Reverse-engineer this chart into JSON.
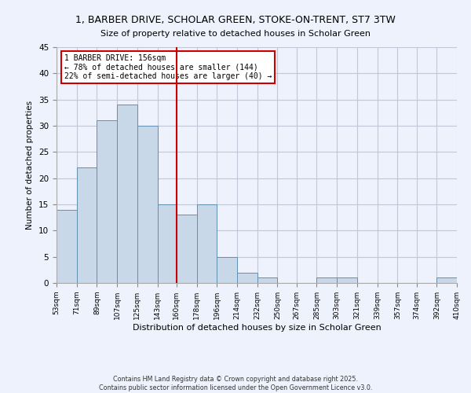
{
  "title": "1, BARBER DRIVE, SCHOLAR GREEN, STOKE-ON-TRENT, ST7 3TW",
  "subtitle": "Size of property relative to detached houses in Scholar Green",
  "xlabel": "Distribution of detached houses by size in Scholar Green",
  "ylabel": "Number of detached properties",
  "bin_labels": [
    "53sqm",
    "71sqm",
    "89sqm",
    "107sqm",
    "125sqm",
    "143sqm",
    "160sqm",
    "178sqm",
    "196sqm",
    "214sqm",
    "232sqm",
    "250sqm",
    "267sqm",
    "285sqm",
    "303sqm",
    "321sqm",
    "339sqm",
    "357sqm",
    "374sqm",
    "392sqm",
    "410sqm"
  ],
  "bin_edges": [
    53,
    71,
    89,
    107,
    125,
    143,
    160,
    178,
    196,
    214,
    232,
    250,
    267,
    285,
    303,
    321,
    339,
    357,
    374,
    392,
    410
  ],
  "bar_heights": [
    14,
    22,
    31,
    34,
    30,
    15,
    13,
    15,
    5,
    2,
    1,
    0,
    0,
    1,
    1,
    0,
    0,
    0,
    0,
    1
  ],
  "bar_color": "#c8d8e8",
  "bar_edge_color": "#6090b0",
  "vline_x": 160,
  "vline_color": "#cc0000",
  "ylim": [
    0,
    45
  ],
  "yticks": [
    0,
    5,
    10,
    15,
    20,
    25,
    30,
    35,
    40,
    45
  ],
  "annotation_title": "1 BARBER DRIVE: 156sqm",
  "annotation_line1": "← 78% of detached houses are smaller (144)",
  "annotation_line2": "22% of semi-detached houses are larger (40) →",
  "annotation_box_color": "#ffffff",
  "annotation_box_edge": "#cc0000",
  "bg_color": "#eef2fc",
  "grid_color": "#c0c8d8",
  "footer1": "Contains HM Land Registry data © Crown copyright and database right 2025.",
  "footer2": "Contains public sector information licensed under the Open Government Licence v3.0."
}
